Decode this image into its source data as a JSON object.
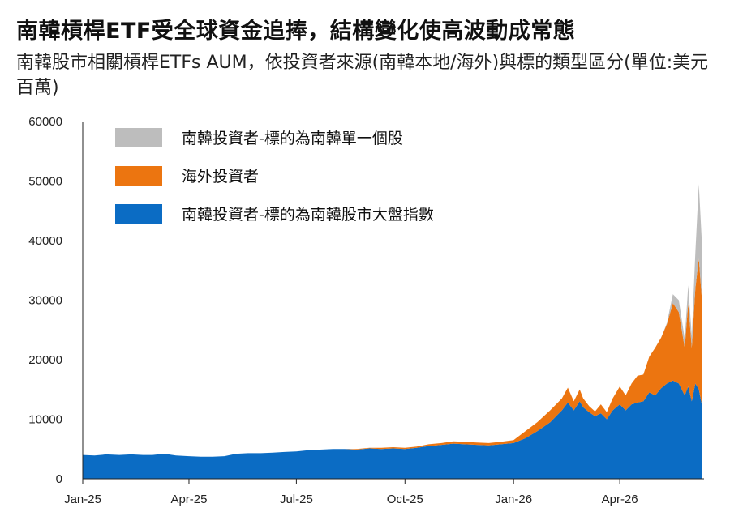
{
  "header": {
    "title": "南韓槓桿ETF受全球資金追捧，結構變化使高波動成常態",
    "subtitle": "南韓股市相關槓桿ETFs AUM，依投資者來源(南韓本地/海外)與標的類型區分(單位:美元百萬)"
  },
  "chart_data": {
    "type": "area",
    "stacked": true,
    "title": "南韓槓桿ETF受全球資金追捧，結構變化使高波動成常態",
    "subtitle": "南韓股市相關槓桿ETFs AUM，依投資者來源(南韓本地/海外)與標的類型區分(單位:美元百萬)",
    "xlabel": "",
    "ylabel": "",
    "grid": false,
    "legend_position": "top-left",
    "ylim": [
      0,
      60000
    ],
    "y_ticks": [
      "0",
      "10000",
      "20000",
      "30000",
      "40000",
      "50000",
      "60000"
    ],
    "x_ticks": [
      "Jan-25",
      "Apr-25",
      "Jul-25",
      "Oct-25",
      "Jan-26",
      "Apr-26"
    ],
    "x_tick_dates": [
      "2025-01-01",
      "2025-04-01",
      "2025-07-01",
      "2025-10-01",
      "2026-01-01",
      "2026-04-01"
    ],
    "x_start": "2025-01-01",
    "x_end": "2026-06-10",
    "x": [
      "2025-01-01",
      "2025-01-11",
      "2025-01-21",
      "2025-02-01",
      "2025-02-11",
      "2025-02-21",
      "2025-03-01",
      "2025-03-11",
      "2025-03-21",
      "2025-04-01",
      "2025-04-11",
      "2025-04-21",
      "2025-05-01",
      "2025-05-11",
      "2025-05-21",
      "2025-06-01",
      "2025-06-11",
      "2025-06-21",
      "2025-07-01",
      "2025-07-11",
      "2025-07-21",
      "2025-08-01",
      "2025-08-11",
      "2025-08-21",
      "2025-09-01",
      "2025-09-11",
      "2025-09-21",
      "2025-10-01",
      "2025-10-11",
      "2025-10-21",
      "2025-11-01",
      "2025-11-11",
      "2025-11-21",
      "2025-12-01",
      "2025-12-11",
      "2025-12-21",
      "2026-01-01",
      "2026-01-11",
      "2026-01-21",
      "2026-02-01",
      "2026-02-06",
      "2026-02-11",
      "2026-02-16",
      "2026-02-21",
      "2026-02-26",
      "2026-03-01",
      "2026-03-06",
      "2026-03-11",
      "2026-03-16",
      "2026-03-21",
      "2026-03-26",
      "2026-04-01",
      "2026-04-06",
      "2026-04-11",
      "2026-04-16",
      "2026-04-21",
      "2026-04-26",
      "2026-05-01",
      "2026-05-06",
      "2026-05-11",
      "2026-05-16",
      "2026-05-21",
      "2026-05-26",
      "2026-05-29",
      "2026-06-01",
      "2026-06-04",
      "2026-06-07",
      "2026-06-10"
    ],
    "series": [
      {
        "name": "南韓投資者-標的為南韓股市大盤指數",
        "color": "#0B6CC4",
        "values": [
          4000,
          3900,
          4100,
          4000,
          4100,
          4000,
          4000,
          4200,
          3900,
          3800,
          3700,
          3700,
          3800,
          4200,
          4300,
          4300,
          4400,
          4500,
          4600,
          4800,
          4900,
          5000,
          5000,
          4900,
          5100,
          5000,
          5100,
          5000,
          5200,
          5500,
          5700,
          5900,
          5800,
          5700,
          5600,
          5800,
          6000,
          6800,
          8000,
          9500,
          10500,
          11500,
          12800,
          11500,
          13000,
          12000,
          11200,
          10500,
          11000,
          10000,
          11500,
          12500,
          11500,
          12500,
          12800,
          13000,
          14500,
          14000,
          15200,
          16000,
          16500,
          16000,
          14000,
          15500,
          13000,
          16000,
          15000,
          12000
        ]
      },
      {
        "name": "海外投資者",
        "color": "#EC7510",
        "values": [
          0,
          0,
          0,
          0,
          0,
          0,
          0,
          0,
          0,
          0,
          0,
          0,
          0,
          0,
          0,
          0,
          0,
          0,
          0,
          0,
          0,
          0,
          0,
          100,
          100,
          200,
          200,
          200,
          200,
          300,
          300,
          400,
          400,
          400,
          400,
          400,
          500,
          1200,
          1500,
          2000,
          2000,
          2000,
          2500,
          1500,
          2000,
          1500,
          1000,
          800,
          1500,
          1200,
          2000,
          3000,
          2500,
          3500,
          4500,
          4500,
          6000,
          8000,
          8500,
          10000,
          13000,
          12000,
          8000,
          14000,
          9000,
          16000,
          22000,
          17000
        ]
      },
      {
        "name": "南韓投資者-標的為南韓單一個股",
        "color": "#BDBDBD",
        "values": [
          0,
          0,
          0,
          0,
          0,
          0,
          0,
          0,
          0,
          0,
          0,
          0,
          0,
          0,
          0,
          0,
          0,
          0,
          0,
          0,
          0,
          0,
          0,
          0,
          0,
          0,
          0,
          0,
          0,
          0,
          0,
          0,
          0,
          0,
          0,
          0,
          0,
          0,
          0,
          0,
          0,
          0,
          0,
          0,
          0,
          0,
          0,
          0,
          0,
          0,
          0,
          0,
          0,
          0,
          0,
          0,
          0,
          0,
          0,
          200,
          1500,
          2000,
          1500,
          3000,
          2000,
          6000,
          12500,
          9000
        ]
      }
    ]
  }
}
